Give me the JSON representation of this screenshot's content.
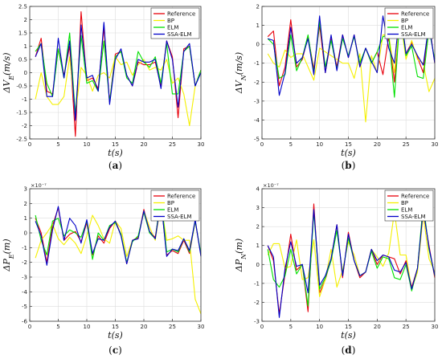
{
  "legend": {
    "entries": [
      {
        "name": "Reference",
        "color": "#e8000b"
      },
      {
        "name": "BP",
        "color": "#f5f000"
      },
      {
        "name": "ELM",
        "color": "#00e000"
      },
      {
        "name": "SSA-ELM",
        "color": "#0000c8"
      }
    ],
    "placement": "top-right"
  },
  "chart_data": [
    {
      "type": "line",
      "panel_label": "(a)",
      "xlabel": "t(s)",
      "ylabel": "ΔV_E(m/s)",
      "exponent": "",
      "xlim": [
        0,
        30
      ],
      "ylim": [
        -2.5,
        2.5
      ],
      "xticks": [
        0,
        5,
        10,
        15,
        20,
        25,
        30
      ],
      "yticks": [
        -2.5,
        -2,
        -1.5,
        -1,
        -0.5,
        0,
        0.5,
        1,
        1.5,
        2,
        2.5
      ],
      "ytick_labels": [
        "-2.5",
        "-2",
        "-1.5",
        "-1",
        "-0.5",
        "0",
        "0.5",
        "1",
        "1.5",
        "2",
        "2.5"
      ],
      "x": [
        1,
        2,
        3,
        4,
        5,
        6,
        7,
        8,
        9,
        10,
        11,
        12,
        13,
        14,
        15,
        16,
        17,
        18,
        19,
        20,
        21,
        22,
        23,
        24,
        25,
        26,
        27,
        28,
        29,
        30
      ],
      "series": [
        {
          "name": "Reference",
          "values": [
            0.6,
            1.3,
            -0.7,
            -0.8,
            0.9,
            -0.1,
            1.0,
            -2.4,
            2.3,
            -0.3,
            -0.2,
            -0.6,
            1.7,
            -1.1,
            0.7,
            0.8,
            -0.1,
            -0.5,
            0.4,
            0.3,
            0.3,
            0.4,
            -0.5,
            1.2,
            0.6,
            -1.7,
            0.9,
            1.0,
            -0.5,
            0.1
          ]
        },
        {
          "name": "BP",
          "values": [
            -1.0,
            0.0,
            -0.9,
            -1.2,
            -1.2,
            -0.9,
            0.6,
            -1.6,
            0.2,
            -0.1,
            -0.7,
            -0.1,
            0.0,
            -0.2,
            0.6,
            0.3,
            0.4,
            -0.1,
            0.3,
            0.5,
            0.1,
            0.2,
            0.1,
            0.5,
            -0.4,
            -0.2,
            -0.8,
            -2.0,
            -0.5,
            0.1
          ]
        },
        {
          "name": "ELM",
          "values": [
            0.8,
            1.1,
            -0.4,
            -0.9,
            0.9,
            -0.2,
            1.5,
            -1.6,
            1.4,
            -0.4,
            -0.3,
            -0.7,
            1.2,
            -1.1,
            0.6,
            0.8,
            -0.2,
            -0.4,
            0.8,
            0.4,
            0.2,
            0.6,
            -0.4,
            1.1,
            -0.8,
            -0.8,
            0.8,
            1.0,
            -0.5,
            0.1
          ]
        },
        {
          "name": "SSA-ELM",
          "values": [
            0.6,
            1.1,
            -0.9,
            -0.9,
            1.3,
            -0.2,
            1.2,
            -1.8,
            1.8,
            -0.2,
            -0.1,
            -0.7,
            1.9,
            -1.2,
            0.5,
            0.9,
            -0.1,
            -0.5,
            0.5,
            0.4,
            0.4,
            0.5,
            -0.6,
            1.2,
            0.5,
            -1.3,
            0.8,
            1.1,
            -0.5,
            0.0
          ]
        }
      ]
    },
    {
      "type": "line",
      "panel_label": "(b)",
      "xlabel": "t(s)",
      "ylabel": "ΔV_N(m/s)",
      "exponent": "",
      "xlim": [
        0,
        30
      ],
      "ylim": [
        -5,
        2
      ],
      "xticks": [
        0,
        5,
        10,
        15,
        20,
        25,
        30
      ],
      "yticks": [
        -5,
        -4,
        -3,
        -2,
        -1,
        0,
        1,
        2
      ],
      "ytick_labels": [
        "-5",
        "-4",
        "-3",
        "-2",
        "-1",
        "0",
        "1",
        "2"
      ],
      "x": [
        1,
        2,
        3,
        4,
        5,
        6,
        7,
        8,
        9,
        10,
        11,
        12,
        13,
        14,
        15,
        16,
        17,
        18,
        19,
        20,
        21,
        22,
        23,
        24,
        25,
        26,
        27,
        28,
        29,
        30
      ],
      "series": [
        {
          "name": "Reference",
          "values": [
            0.4,
            0.7,
            -2.2,
            -1.2,
            1.3,
            -1.2,
            -0.8,
            0.4,
            -1.3,
            1.0,
            -1.5,
            0.3,
            -1.2,
            0.5,
            -0.7,
            0.5,
            -1.1,
            -0.2,
            -1.0,
            -0.4,
            -1.6,
            0.4,
            -2.0,
            1.8,
            -0.5,
            0.1,
            -0.7,
            -1.5,
            1.2,
            -1.0
          ]
        },
        {
          "name": "BP",
          "values": [
            -0.5,
            -1.0,
            -1.2,
            -0.3,
            -0.7,
            -0.5,
            -0.5,
            -1.2,
            -1.9,
            -0.2,
            -0.4,
            -0.6,
            -0.8,
            -1.0,
            -1.0,
            -1.8,
            -0.5,
            -4.1,
            -0.6,
            -1.5,
            0.5,
            0.5,
            -1.5,
            1.4,
            -0.8,
            0.2,
            -0.8,
            -1.0,
            -2.5,
            -1.8
          ]
        },
        {
          "name": "ELM",
          "values": [
            0.3,
            0.0,
            -1.8,
            -1.6,
            0.5,
            -1.4,
            -0.7,
            0.5,
            -1.5,
            1.2,
            -1.2,
            0.2,
            -1.3,
            0.3,
            -0.6,
            0.4,
            -1.0,
            -0.2,
            -1.0,
            -0.4,
            0.4,
            0.5,
            -2.8,
            1.7,
            -0.6,
            -0.1,
            -1.7,
            -1.8,
            0.8,
            -0.8
          ]
        },
        {
          "name": "SSA-ELM",
          "values": [
            0.3,
            0.2,
            -2.7,
            -1.5,
            0.9,
            -1.0,
            -0.7,
            0.3,
            -1.6,
            1.5,
            -1.5,
            0.5,
            -1.4,
            0.5,
            -0.7,
            0.5,
            -1.2,
            -0.2,
            -0.9,
            -1.5,
            1.5,
            -0.2,
            -1.0,
            1.9,
            -0.5,
            0.0,
            -0.6,
            -1.1,
            1.1,
            -1.0
          ]
        }
      ]
    },
    {
      "type": "line",
      "panel_label": "(c)",
      "xlabel": "t(s)",
      "ylabel": "ΔP_E(m)",
      "exponent": "×10⁻⁷",
      "xlim": [
        0,
        30
      ],
      "ylim": [
        -6,
        3
      ],
      "xticks": [
        0,
        5,
        10,
        15,
        20,
        25,
        30
      ],
      "yticks": [
        -6,
        -5,
        -4,
        -3,
        -2,
        -1,
        0,
        1,
        2,
        3
      ],
      "ytick_labels": [
        "-6",
        "-5",
        "-4",
        "-3",
        "-2",
        "-1",
        "0",
        "1",
        "2",
        "3"
      ],
      "x": [
        1,
        2,
        3,
        4,
        5,
        6,
        7,
        8,
        9,
        10,
        11,
        12,
        13,
        14,
        15,
        16,
        17,
        18,
        19,
        20,
        21,
        22,
        23,
        24,
        25,
        26,
        27,
        28,
        29,
        30
      ],
      "series": [
        {
          "name": "Reference",
          "values": [
            1.0,
            0.0,
            -2.0,
            0.5,
            1.7,
            -0.5,
            -0.1,
            0.1,
            -0.6,
            0.7,
            -1.5,
            -0.2,
            -0.7,
            0.3,
            0.8,
            -0.1,
            -2.1,
            -0.5,
            -0.3,
            1.6,
            0.1,
            -0.3,
            2.2,
            -1.5,
            -1.2,
            -1.4,
            -0.5,
            -1.4,
            0.8,
            -1.5
          ]
        },
        {
          "name": "BP",
          "values": [
            -1.7,
            -0.5,
            0.0,
            0.6,
            -0.4,
            -0.8,
            -0.3,
            -0.7,
            -1.4,
            -0.2,
            1.2,
            0.5,
            -0.4,
            -0.7,
            0.8,
            0.3,
            -1.6,
            -0.5,
            -0.4,
            1.5,
            0.4,
            -0.5,
            2.0,
            -0.5,
            -0.4,
            -0.2,
            -0.5,
            -0.5,
            -4.5,
            -5.5
          ]
        },
        {
          "name": "ELM",
          "values": [
            1.2,
            -0.5,
            -1.5,
            0.8,
            1.0,
            -0.2,
            0.2,
            0.0,
            -0.3,
            0.8,
            -1.8,
            0.0,
            -0.5,
            0.5,
            0.7,
            -0.1,
            -2.0,
            -0.6,
            -0.2,
            1.4,
            0.0,
            -0.4,
            2.5,
            -1.3,
            -1.1,
            -1.3,
            -0.4,
            -1.3,
            0.8,
            -1.4
          ]
        },
        {
          "name": "SSA-ELM",
          "values": [
            0.8,
            -0.2,
            -2.2,
            0.2,
            1.8,
            -0.5,
            1.0,
            0.5,
            -0.7,
            0.9,
            -1.4,
            -0.4,
            -0.5,
            0.4,
            0.8,
            -0.2,
            -2.1,
            -0.5,
            -0.4,
            1.5,
            0.1,
            -0.4,
            2.2,
            -1.6,
            -1.1,
            -1.2,
            -0.4,
            -1.2,
            0.9,
            -1.6
          ]
        }
      ]
    },
    {
      "type": "line",
      "panel_label": "(d)",
      "xlabel": "t(s)",
      "ylabel": "ΔP_N(m)",
      "exponent": "×10⁻⁷",
      "xlim": [
        0,
        30
      ],
      "ylim": [
        -3,
        4
      ],
      "xticks": [
        0,
        5,
        10,
        15,
        20,
        25,
        30
      ],
      "yticks": [
        -3,
        -2,
        -1,
        0,
        1,
        2,
        3,
        4
      ],
      "ytick_labels": [
        "-3",
        "-2",
        "-1",
        "0",
        "1",
        "2",
        "3",
        "4"
      ],
      "x": [
        1,
        2,
        3,
        4,
        5,
        6,
        7,
        8,
        9,
        10,
        11,
        12,
        13,
        14,
        15,
        16,
        17,
        18,
        19,
        20,
        21,
        22,
        23,
        24,
        25,
        26,
        27,
        28,
        29,
        30
      ],
      "series": [
        {
          "name": "Reference",
          "values": [
            1.0,
            0.2,
            -2.6,
            -0.5,
            1.6,
            -0.3,
            0.0,
            -2.5,
            3.2,
            -1.5,
            -0.8,
            0.3,
            2.1,
            -0.7,
            1.7,
            0.2,
            -0.7,
            -0.4,
            0.8,
            0.0,
            0.5,
            0.4,
            0.3,
            -0.5,
            0.2,
            -1.2,
            -0.2,
            2.8,
            1.0,
            -0.7
          ]
        },
        {
          "name": "BP",
          "values": [
            0.5,
            1.1,
            1.1,
            -0.2,
            -0.1,
            1.3,
            -0.8,
            -0.7,
            1.3,
            -1.7,
            -0.8,
            0.8,
            -1.2,
            -0.3,
            1.2,
            0.5,
            -0.6,
            -0.4,
            0.8,
            0.4,
            -0.1,
            0.6,
            2.8,
            0.5,
            0.5,
            -1.3,
            -0.4,
            2.6,
            0.3,
            -0.4
          ]
        },
        {
          "name": "ELM",
          "values": [
            0.8,
            -0.8,
            -1.2,
            -0.6,
            0.8,
            -0.5,
            0.0,
            -2.2,
            2.8,
            -1.3,
            -0.7,
            0.2,
            1.8,
            -0.5,
            1.4,
            0.2,
            -0.6,
            -0.4,
            0.7,
            -0.2,
            0.4,
            0.3,
            -0.7,
            -0.8,
            0.0,
            -1.4,
            -0.2,
            3.2,
            0.8,
            -0.6
          ]
        },
        {
          "name": "SSA-ELM",
          "values": [
            1.0,
            0.4,
            -2.8,
            -0.2,
            1.2,
            -0.1,
            0.0,
            -1.5,
            2.9,
            -1.1,
            -0.6,
            0.3,
            2.1,
            -0.6,
            1.6,
            0.2,
            -0.6,
            -0.4,
            0.8,
            0.2,
            0.5,
            0.4,
            -0.3,
            -0.4,
            0.1,
            -1.3,
            -0.2,
            2.9,
            0.9,
            -0.6
          ]
        }
      ]
    }
  ]
}
